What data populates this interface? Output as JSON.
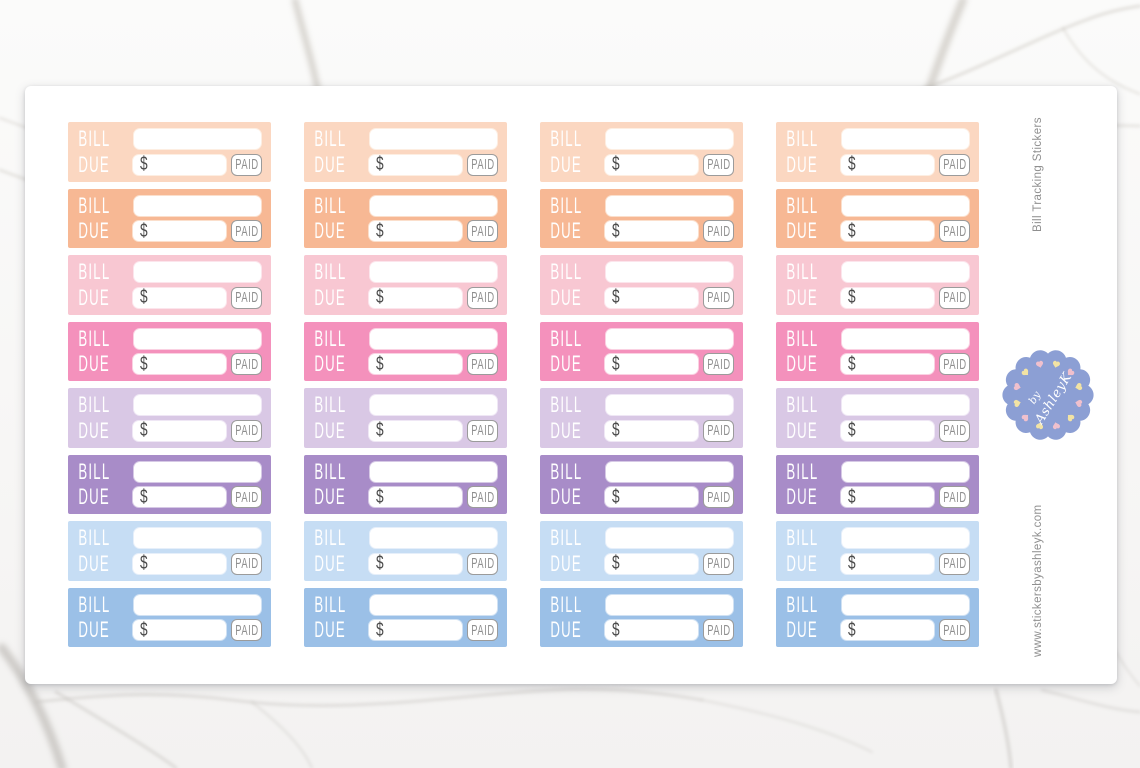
{
  "product": {
    "side_text_top": "Bill Tracking Stickers",
    "side_text_bottom": "www.stickersbyashleyk.com"
  },
  "badge": {
    "text_line1": "by",
    "text_line2": "AshleyK",
    "circle_color": "#8c9fd4",
    "heart_colors": [
      "#f2e3a4",
      "#f0c0cd"
    ],
    "text_color": "#ffffff"
  },
  "sticker_template": {
    "bill_label": "BILL",
    "due_label": "DUE",
    "currency_symbol": "$",
    "paid_label": "PAID",
    "label_color": "#ffffff",
    "currency_color": "#4a4a4a",
    "paid_text_color": "#8f8f8f",
    "paid_border_color": "#9b9b9b"
  },
  "grid": {
    "columns": 4,
    "rows": [
      {
        "color_name": "light-peach",
        "bg": "#fbd7c1",
        "box_border": "#fdeee2"
      },
      {
        "color_name": "peach",
        "bg": "#f7b894",
        "box_border": "#fbdfcc"
      },
      {
        "color_name": "light-pink",
        "bg": "#f8c7d2",
        "box_border": "#fce5ec"
      },
      {
        "color_name": "pink",
        "bg": "#f491bc",
        "box_border": "#fad1e2"
      },
      {
        "color_name": "light-lavender",
        "bg": "#d9c8e5",
        "box_border": "#efe7f5"
      },
      {
        "color_name": "purple",
        "bg": "#a88cc8",
        "box_border": "#d6c9e5"
      },
      {
        "color_name": "light-blue",
        "bg": "#c6ddf4",
        "box_border": "#e6effa"
      },
      {
        "color_name": "blue",
        "bg": "#9bc0e7",
        "box_border": "#d0e1f3"
      }
    ]
  }
}
